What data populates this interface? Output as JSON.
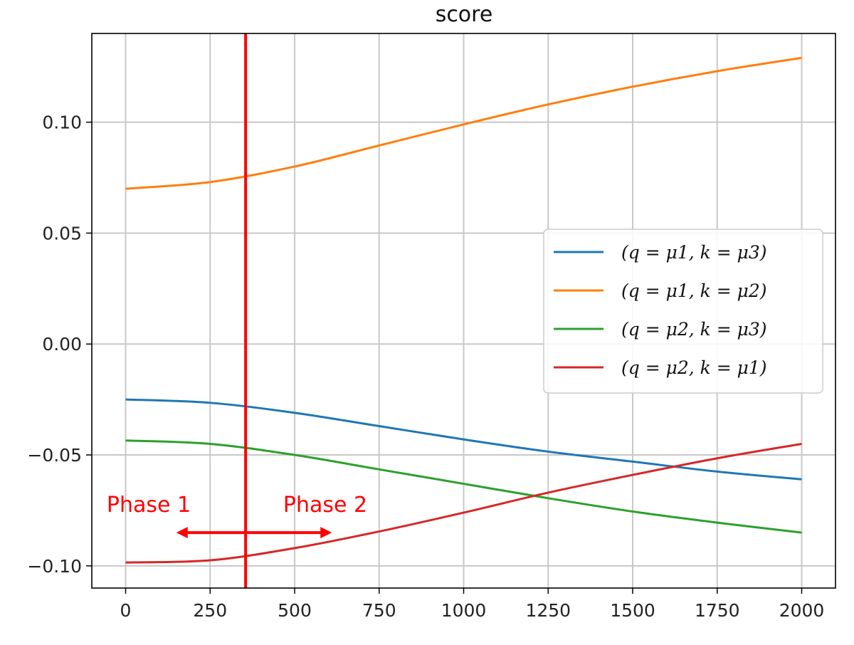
{
  "chart_data": {
    "type": "line",
    "title": "score",
    "xlabel": "",
    "ylabel": "",
    "xlim": [
      -100,
      2100
    ],
    "ylim": [
      -0.11,
      0.14
    ],
    "grid": true,
    "xticks": [
      0,
      250,
      500,
      750,
      1000,
      1250,
      1500,
      1750,
      2000
    ],
    "xtick_labels": [
      "0",
      "250",
      "500",
      "750",
      "1000",
      "1250",
      "1500",
      "1750",
      "2000"
    ],
    "yticks": [
      -0.1,
      -0.05,
      0.0,
      0.05,
      0.1
    ],
    "ytick_labels": [
      "−0.10",
      "−0.05",
      "0.00",
      "0.05",
      "0.10"
    ],
    "x": [
      0,
      250,
      500,
      750,
      1000,
      1250,
      1500,
      1750,
      2000
    ],
    "series": [
      {
        "name": "(q = μ1, k = μ3)",
        "color": "#1f77b4",
        "values": [
          -0.025,
          -0.0265,
          -0.031,
          -0.037,
          -0.043,
          -0.0485,
          -0.053,
          -0.0575,
          -0.061
        ]
      },
      {
        "name": "(q = μ1, k = μ2)",
        "color": "#ff7f0e",
        "values": [
          0.07,
          0.073,
          0.08,
          0.0895,
          0.099,
          0.108,
          0.116,
          0.123,
          0.129
        ]
      },
      {
        "name": "(q = μ2, k = μ3)",
        "color": "#2ca02c",
        "values": [
          -0.0435,
          -0.045,
          -0.05,
          -0.0565,
          -0.063,
          -0.0695,
          -0.0755,
          -0.0805,
          -0.085
        ]
      },
      {
        "name": "(q = μ2, k = μ1)",
        "color": "#d62728",
        "values": [
          -0.0985,
          -0.0975,
          -0.092,
          -0.0845,
          -0.076,
          -0.067,
          -0.059,
          -0.0515,
          -0.045
        ]
      }
    ],
    "legend_position": "center-right",
    "annotations": {
      "vline_x": 355,
      "vline_color": "#ff0000",
      "phase1_label": "Phase 1",
      "phase2_label": "Phase 2",
      "arrow_y": -0.085,
      "arrow_from_x": 150,
      "arrow_to_x": 610
    }
  }
}
